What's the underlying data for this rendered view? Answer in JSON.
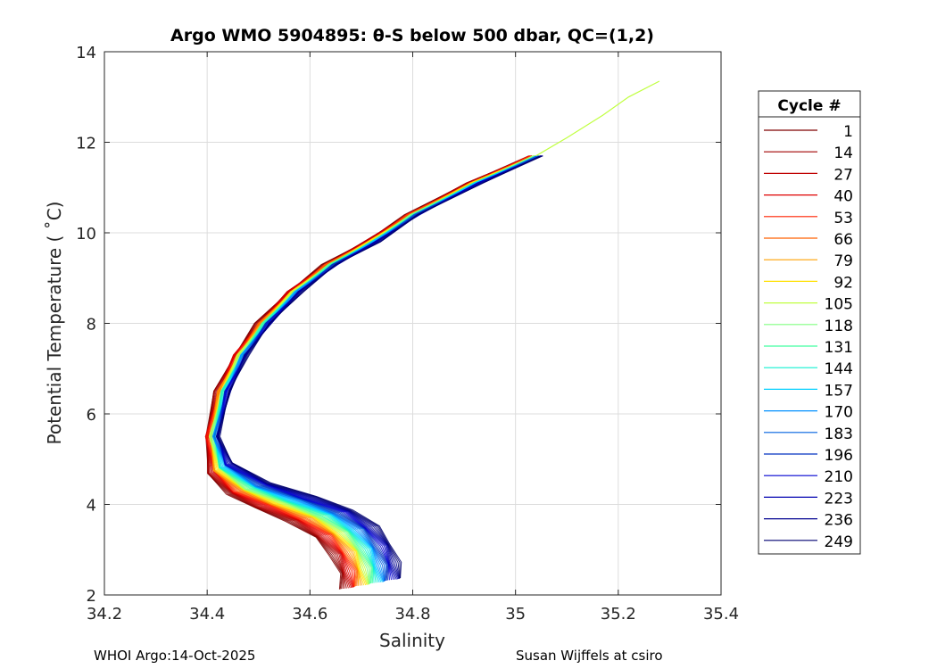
{
  "chart_data": {
    "type": "line",
    "title": "Argo WMO 5904895: θ-S below 500 dbar,  QC=(1,2)",
    "xlabel": "Salinity",
    "ylabel": "Potential Temperature ( ˚C)",
    "xlim": [
      34.2,
      35.4
    ],
    "ylim": [
      2,
      14
    ],
    "xticks": [
      "34.2",
      "34.4",
      "34.6",
      "34.8",
      "35",
      "35.2",
      "35.4"
    ],
    "yticks": [
      "2",
      "4",
      "6",
      "8",
      "10",
      "12",
      "14"
    ],
    "grid": true,
    "legend": {
      "title": "Cycle #",
      "placement": "outside-right",
      "entries": [
        "1",
        "14",
        "27",
        "40",
        "53",
        "66",
        "79",
        "92",
        "105",
        "118",
        "131",
        "144",
        "157",
        "170",
        "183",
        "196",
        "210",
        "223",
        "236",
        "249"
      ]
    },
    "colors": [
      "#7f0000",
      "#a00000",
      "#c00000",
      "#df0000",
      "#ff2000",
      "#ff6000",
      "#ffa000",
      "#ffe000",
      "#c0ff40",
      "#80ff80",
      "#40ffa0",
      "#10f0d0",
      "#00d0ff",
      "#0090ff",
      "#0060e0",
      "#0030c0",
      "#0000d0",
      "#0000b0",
      "#000090",
      "#000070"
    ],
    "series_profile": {
      "salinity": [
        35.04,
        34.92,
        34.8,
        34.72,
        34.64,
        34.57,
        34.51,
        34.465,
        34.43,
        34.41,
        34.425,
        34.47,
        34.53,
        34.6,
        34.66,
        34.7,
        34.715,
        34.72
      ],
      "theta": [
        11.7,
        11.1,
        10.4,
        9.8,
        9.3,
        8.7,
        8.0,
        7.3,
        6.5,
        5.5,
        4.8,
        4.35,
        4.05,
        3.75,
        3.4,
        3.0,
        2.6,
        2.25
      ]
    },
    "early_extension": {
      "salinity": [
        35.04,
        35.1,
        35.17,
        35.22,
        35.28
      ],
      "theta": [
        11.7,
        12.1,
        12.6,
        13.0,
        13.35
      ]
    }
  },
  "footer": {
    "left": "WHOI Argo:14-Oct-2025",
    "right": "Susan Wijffels at csiro"
  }
}
